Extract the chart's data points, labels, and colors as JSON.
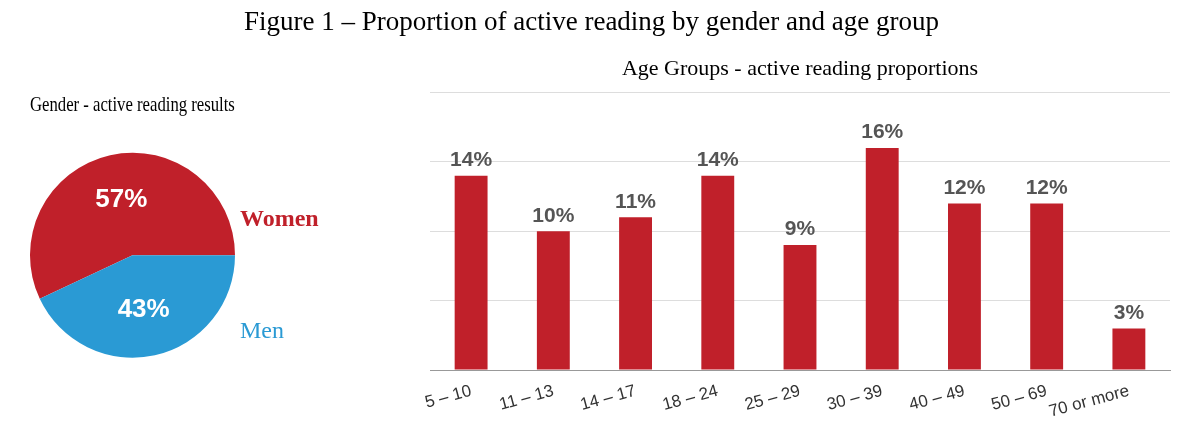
{
  "chart_data": [
    {
      "type": "pie",
      "title": "Gender - active reading results",
      "annotations": [
        "Figure 1 – Proportion of active reading by gender and age group"
      ],
      "categories": [
        "Women",
        "Men"
      ],
      "values": [
        57,
        43
      ],
      "colors": [
        "#c0202a",
        "#2a9ad4"
      ],
      "value_labels": [
        "57%",
        "43%"
      ],
      "legend": false
    },
    {
      "type": "bar",
      "title": "Age Groups - active reading proportions",
      "categories": [
        "5 – 10",
        "11 – 13",
        "14 – 17",
        "18 – 24",
        "25 – 29",
        "30 – 39",
        "40 – 49",
        "50 – 69",
        "70 or more"
      ],
      "values": [
        14,
        10,
        11,
        14,
        9,
        16,
        12,
        12,
        3
      ],
      "value_labels": [
        "14%",
        "10%",
        "11%",
        "14%",
        "9%",
        "16%",
        "12%",
        "12%",
        "3%"
      ],
      "color": "#c0202a",
      "ylim": [
        0,
        20
      ],
      "yticks": [
        {
          "value": 0,
          "label": null
        },
        {
          "value": 5,
          "label": null
        },
        {
          "value": 10,
          "label": null
        },
        {
          "value": 15,
          "label": null
        },
        {
          "value": 20,
          "label": null
        }
      ],
      "grid": "y",
      "tick_labels": "x",
      "legend": false
    }
  ]
}
